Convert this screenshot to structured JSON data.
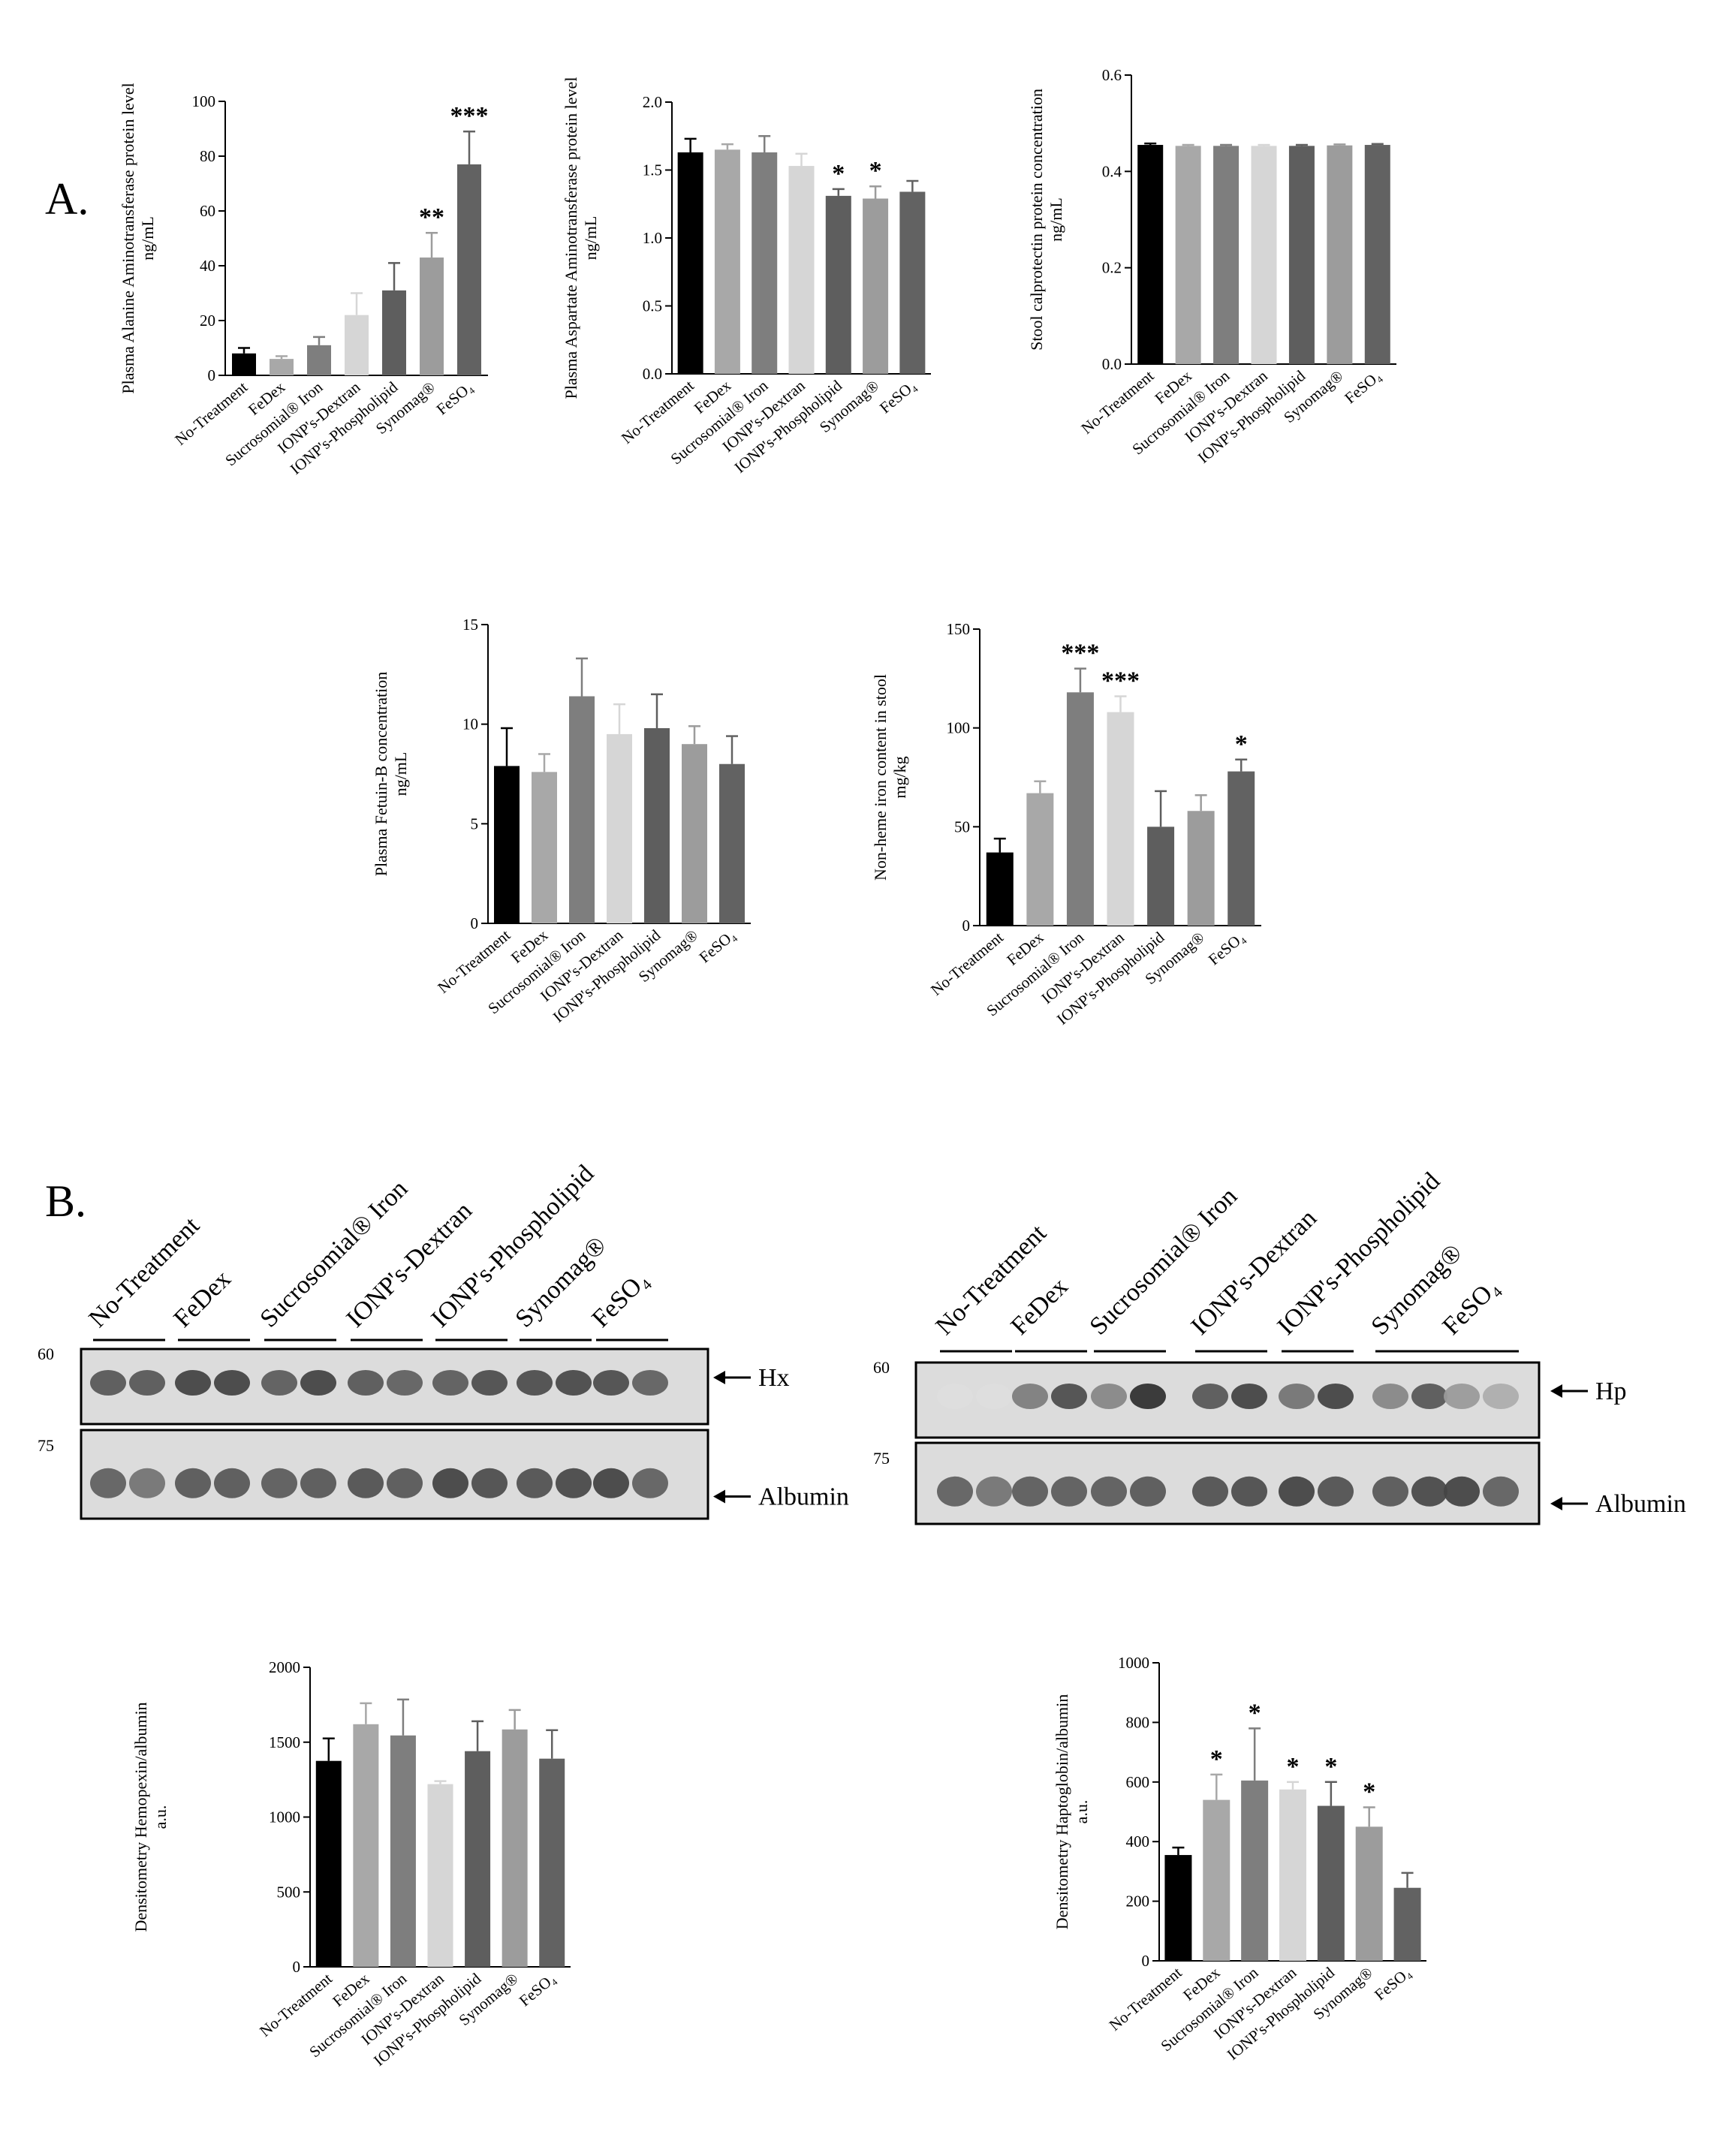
{
  "panel_labels": {
    "a": "A.",
    "b": "B."
  },
  "colors": [
    "#000000",
    "#a8a8a8",
    "#7e7e7e",
    "#d6d6d6",
    "#5e5e5e",
    "#9c9c9c",
    "#626262"
  ],
  "chart_data": [
    {
      "id": "alt",
      "type": "bar",
      "categories": [
        "No-Treatment",
        "FeDex",
        "Sucrosomial® Iron",
        "IONP's-Dextran",
        "IONP's-Phospholipid",
        "Synomag®",
        "FeSO₄"
      ],
      "values": [
        8,
        6,
        11,
        22,
        31,
        43,
        77
      ],
      "errors": [
        2,
        1,
        3,
        8,
        10,
        9,
        12
      ],
      "significance": [
        "",
        "",
        "",
        "",
        "",
        "**",
        "***"
      ],
      "ylabel": [
        "Plasma Alanine Aminotransferase protein level",
        "ng/mL"
      ],
      "ylim": [
        0,
        100
      ],
      "yticks": [
        "0",
        "20",
        "40",
        "60",
        "80",
        "100"
      ]
    },
    {
      "id": "ast",
      "type": "bar",
      "categories": [
        "No-Treatment",
        "FeDex",
        "Sucrosomial® Iron",
        "IONP's-Dextran",
        "IONP's-Phospholipid",
        "Synomag®",
        "FeSO₄"
      ],
      "values": [
        1.63,
        1.65,
        1.63,
        1.53,
        1.31,
        1.29,
        1.34
      ],
      "errors": [
        0.1,
        0.04,
        0.12,
        0.09,
        0.05,
        0.09,
        0.08
      ],
      "significance": [
        "",
        "",
        "",
        "",
        "*",
        "*",
        ""
      ],
      "ylabel": [
        "Plasma Aspartate Aminotransferase protein level",
        "ng/mL"
      ],
      "ylim": [
        0,
        2
      ],
      "yticks": [
        "0.0",
        "0.5",
        "1.0",
        "1.5",
        "2.0"
      ]
    },
    {
      "id": "calpro",
      "type": "bar",
      "categories": [
        "No-Treatment",
        "FeDex",
        "Sucrosomial® Iron",
        "IONP's-Dextran",
        "IONP's-Phospholipid",
        "Synomag®",
        "FeSO₄"
      ],
      "values": [
        0.455,
        0.453,
        0.453,
        0.453,
        0.453,
        0.454,
        0.455
      ],
      "errors": [
        0.003,
        0.002,
        0.002,
        0.002,
        0.002,
        0.002,
        0.002
      ],
      "significance": [
        "",
        "",
        "",
        "",
        "",
        "",
        ""
      ],
      "ylabel": [
        "Stool calprotectin protein concentration",
        "ng/mL"
      ],
      "ylim": [
        0,
        0.6
      ],
      "yticks": [
        "0.0",
        "0.2",
        "0.4",
        "0.6"
      ]
    },
    {
      "id": "fetuin",
      "type": "bar",
      "categories": [
        "No-Treatment",
        "FeDex",
        "Sucrosomial® Iron",
        "IONP's-Dextran",
        "IONP's-Phospholipid",
        "Synomag®",
        "FeSO₄"
      ],
      "values": [
        7.9,
        7.6,
        11.4,
        9.5,
        9.8,
        9.0,
        8.0
      ],
      "errors": [
        1.9,
        0.9,
        1.9,
        1.5,
        1.7,
        0.9,
        1.4
      ],
      "significance": [
        "",
        "",
        "",
        "",
        "",
        "",
        ""
      ],
      "ylabel": [
        "Plasma Fetuin-B concentration",
        "ng/mL"
      ],
      "ylim": [
        0,
        15
      ],
      "yticks": [
        "0",
        "5",
        "10",
        "15"
      ]
    },
    {
      "id": "nonheme",
      "type": "bar",
      "categories": [
        "No-Treatment",
        "FeDex",
        "Sucrosomial® Iron",
        "IONP's-Dextran",
        "IONP's-Phospholipid",
        "Synomag®",
        "FeSO₄"
      ],
      "values": [
        37,
        67,
        118,
        108,
        50,
        58,
        78
      ],
      "errors": [
        7,
        6,
        12,
        8,
        18,
        8,
        6
      ],
      "significance": [
        "",
        "",
        "***",
        "***",
        "",
        "",
        "*"
      ],
      "ylabel": [
        "Non-heme iron content in stool",
        "mg/kg"
      ],
      "ylim": [
        0,
        150
      ],
      "yticks": [
        "0",
        "50",
        "100",
        "150"
      ]
    },
    {
      "id": "hemopexin",
      "type": "bar",
      "categories": [
        "No-Treatment",
        "FeDex",
        "Sucrosomial® Iron",
        "IONP's-Dextran",
        "IONP's-Phospholipid",
        "Synomag®",
        "FeSO₄"
      ],
      "values": [
        1375,
        1620,
        1545,
        1220,
        1440,
        1585,
        1390
      ],
      "errors": [
        150,
        140,
        240,
        20,
        200,
        130,
        190
      ],
      "significance": [
        "",
        "",
        "",
        "",
        "",
        "",
        ""
      ],
      "ylabel": [
        "Densitometry Hemopexin/albumin",
        "a.u."
      ],
      "ylim": [
        0,
        2000
      ],
      "yticks": [
        "0",
        "500",
        "1000",
        "1500",
        "2000"
      ]
    },
    {
      "id": "haptoglobin",
      "type": "bar",
      "categories": [
        "No-Treatment",
        "FeDex",
        "Sucrosomial® Iron",
        "IONP's-Dextran",
        "IONP's-Phospholipid",
        "Synomag®",
        "FeSO₄"
      ],
      "values": [
        355,
        540,
        605,
        575,
        520,
        450,
        245
      ],
      "errors": [
        25,
        85,
        175,
        25,
        80,
        65,
        50
      ],
      "significance": [
        "",
        "*",
        "*",
        "*",
        "*",
        "*",
        ""
      ],
      "ylabel": [
        "Densitometry Haptoglobin/albumin",
        "a.u."
      ],
      "ylim": [
        0,
        1000
      ],
      "yticks": [
        "0",
        "200",
        "400",
        "600",
        "800",
        "1000"
      ]
    }
  ],
  "blots": [
    {
      "id": "hx",
      "lanes": [
        "No-Treatment",
        "FeDex",
        "Sucrosomial® Iron",
        "IONP's-Dextran",
        "IONP's-Phospholipid",
        "Synomag®",
        "FeSO₄"
      ],
      "top_band": "Hx",
      "bottom_band": "Albumin",
      "markers": [
        "60",
        "75"
      ]
    },
    {
      "id": "hp",
      "lanes": [
        "No-Treatment",
        "FeDex",
        "Sucrosomial® Iron",
        "IONP's-Dextran",
        "IONP's-Phospholipid",
        "Synomag®",
        "FeSO₄"
      ],
      "top_band": "Hp",
      "bottom_band": "Albumin",
      "markers": [
        "60",
        "75"
      ]
    }
  ]
}
